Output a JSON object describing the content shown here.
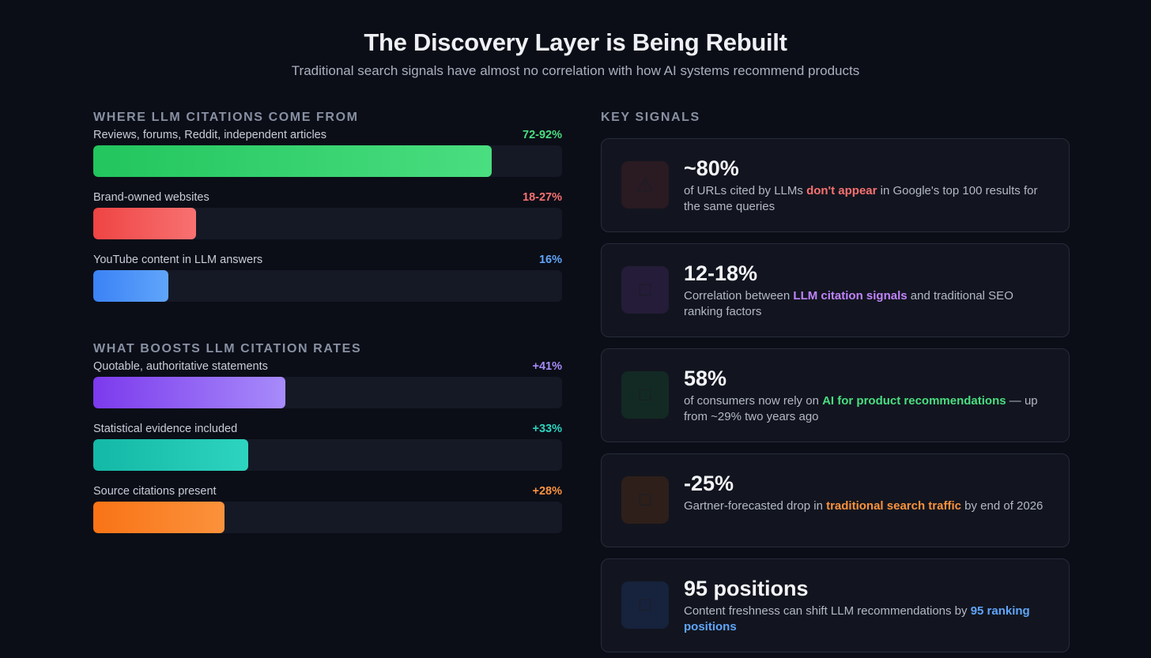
{
  "header": {
    "title": "The Discovery Layer is Being Rebuilt",
    "subtitle": "Traditional search signals have almost no correlation with how AI systems recommend products"
  },
  "chart_data": [
    {
      "type": "bar",
      "orientation": "horizontal",
      "title": "WHERE LLM CITATIONS COME FROM",
      "xlim": [
        0,
        100
      ],
      "categories": [
        "Reviews, forums, Reddit, independent articles",
        "Brand-owned websites",
        "YouTube content in LLM answers"
      ],
      "value_labels": [
        "72-92%",
        "18-27%",
        "16%"
      ],
      "values": [
        85,
        22,
        16
      ],
      "colors": [
        [
          "#22c55e",
          "#4ade80"
        ],
        [
          "#ef4444",
          "#f87171"
        ],
        [
          "#3b82f6",
          "#60a5fa"
        ]
      ],
      "label_colors": [
        "#4ade80",
        "#f87171",
        "#60a5fa"
      ]
    },
    {
      "type": "bar",
      "orientation": "horizontal",
      "title": "WHAT BOOSTS LLM CITATION RATES",
      "xlim": [
        0,
        100
      ],
      "categories": [
        "Quotable, authoritative statements",
        "Statistical evidence included",
        "Source citations present"
      ],
      "value_labels": [
        "+41%",
        "+33%",
        "+28%"
      ],
      "values": [
        41,
        33,
        28
      ],
      "colors": [
        [
          "#7c3aed",
          "#a78bfa"
        ],
        [
          "#14b8a6",
          "#2dd4bf"
        ],
        [
          "#f97316",
          "#fb923c"
        ]
      ],
      "label_colors": [
        "#a78bfa",
        "#2dd4bf",
        "#fb923c"
      ]
    }
  ],
  "key_signals": {
    "title": "KEY SIGNALS",
    "cards": [
      {
        "icon": "warning-icon",
        "glyph": "⚠",
        "icon_bg": "#2a1a22",
        "stat": "~80%",
        "pre": "of URLs cited by LLMs ",
        "highlight": "don't appear",
        "post": " in Google's top 100 results for the same queries",
        "accent": "#f87171"
      },
      {
        "icon": "link-icon",
        "glyph": "□",
        "icon_bg": "#241c38",
        "stat": "12-18%",
        "pre": "Correlation between ",
        "highlight": "LLM citation signals",
        "post": " and traditional SEO ranking factors",
        "accent": "#c084fc"
      },
      {
        "icon": "robot-icon",
        "glyph": "□",
        "icon_bg": "#132a24",
        "stat": "58%",
        "pre": "of consumers now rely on ",
        "highlight": "AI for product recommendations",
        "post": " — up from ~29% two years ago",
        "accent": "#4ade80"
      },
      {
        "icon": "chart-down-icon",
        "glyph": "□",
        "icon_bg": "#2e1f1a",
        "stat": "-25%",
        "pre": "Gartner-forecasted drop in ",
        "highlight": "traditional search traffic",
        "post": " by end of 2026",
        "accent": "#fb923c"
      },
      {
        "icon": "refresh-icon",
        "glyph": "□",
        "icon_bg": "#17223c",
        "stat": "95 positions",
        "pre": "Content freshness can shift LLM recommendations by ",
        "highlight": "95 ranking positions",
        "post": "",
        "accent": "#60a5fa"
      }
    ]
  }
}
